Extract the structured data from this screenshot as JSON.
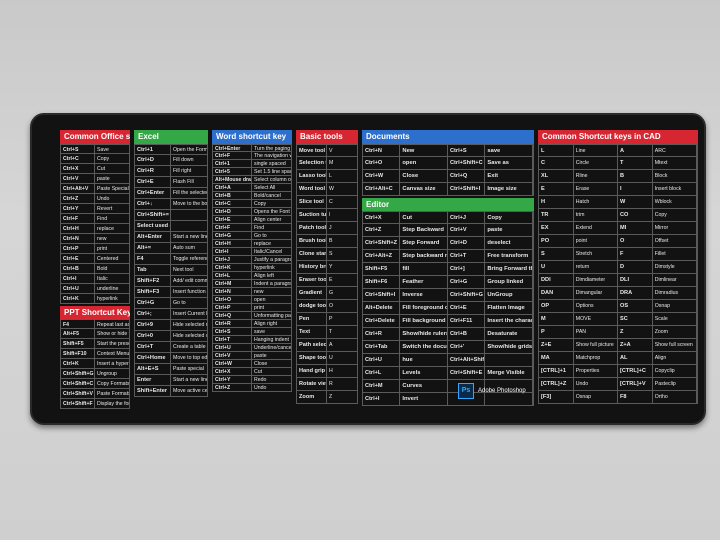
{
  "colors": {
    "red": "#d62631",
    "green": "#34a746",
    "blue": "#2c6fcc",
    "mat": "#121212"
  },
  "panels": [
    {
      "id": "office",
      "title": "Common Office shortcuts",
      "color": "red",
      "left": 28,
      "width": 70,
      "rows": [
        [
          "Ctrl+S",
          "Save"
        ],
        [
          "Ctrl+C",
          "Copy"
        ],
        [
          "Ctrl+X",
          "Cut"
        ],
        [
          "Ctrl+V",
          "paste"
        ],
        [
          "Ctrl+Alt+V",
          "Paste Special"
        ],
        [
          "Ctrl+Z",
          "Undo"
        ],
        [
          "Ctrl+Y",
          "Revert"
        ],
        [
          "Ctrl+F",
          "Find"
        ],
        [
          "Ctrl+H",
          "replace"
        ],
        [
          "Ctrl+N",
          "new"
        ],
        [
          "Ctrl+P",
          "print"
        ],
        [
          "Ctrl+E",
          "Centered"
        ],
        [
          "Ctrl+B",
          "Bold"
        ],
        [
          "Ctrl+I",
          "Italic"
        ],
        [
          "Ctrl+U",
          "underline"
        ],
        [
          "Ctrl+K",
          "hyperlink"
        ]
      ],
      "sub_title": "PPT Shortcut Key",
      "sub_rows": [
        [
          "F4",
          "Repeat last action"
        ],
        [
          "Alt+F5",
          "Show or hide the guides"
        ],
        [
          "Shift+F5",
          "Start the presentation from the current slide"
        ],
        [
          "Shift+F10",
          "Context Menu"
        ],
        [
          "Ctrl+K",
          "Insert a hyperlink"
        ],
        [
          "Ctrl+Shift+G",
          "Ungroup"
        ],
        [
          "Ctrl+Shift+C",
          "Copy Formats"
        ],
        [
          "Ctrl+Shift+V",
          "Paste Formats"
        ],
        [
          "Ctrl+Shift+F",
          "Display the font dialog box"
        ]
      ]
    },
    {
      "id": "excel",
      "title": "Excel",
      "color": "green",
      "left": 102,
      "width": 74,
      "rows": [
        [
          "Ctrl+1",
          "Open the Format Cells dialog box"
        ],
        [
          "Ctrl+D",
          "Fill down"
        ],
        [
          "Ctrl+R",
          "Fill right"
        ],
        [
          "Ctrl+E",
          "Flash Fill"
        ],
        [
          "Ctrl+Enter",
          "Fill the selected cell range"
        ],
        [
          "Ctrl+↓",
          "Move to the bottom cell"
        ],
        [
          "Ctrl+Shift+=",
          ""
        ],
        [
          "Select used cells in a column",
          ""
        ],
        [
          "Alt+Enter",
          "Start a new line within the same cell"
        ],
        [
          "Alt+=",
          "Auto sum"
        ],
        [
          "F4",
          "Toggle references Repeat last action"
        ],
        [
          "Tab",
          "Next tool"
        ],
        [
          "Shift+F2",
          "Add/ edit comments"
        ],
        [
          "Shift+F3",
          "Insert function dialog box"
        ],
        [
          "Ctrl+G",
          "Go to"
        ],
        [
          "Ctrl+;",
          "Insert Current Date"
        ],
        [
          "Ctrl+9",
          "Hide selected rows"
        ],
        [
          "Ctrl+0",
          "Hide selected columns"
        ],
        [
          "Ctrl+T",
          "Create a table"
        ],
        [
          "Ctrl+Home",
          "Move to top edge of data region"
        ],
        [
          "Alt+E+S",
          "Paste special"
        ],
        [
          "Enter",
          "Start a new line"
        ],
        [
          "Shift+Enter",
          "Move active cell up to selection"
        ]
      ]
    },
    {
      "id": "word",
      "title": "Word shortcut key",
      "color": "blue",
      "left": 180,
      "width": 80,
      "rows": [
        [
          "Ctrl+Enter",
          "Turn the paging"
        ],
        [
          "Ctrl+F",
          "The navigation window"
        ],
        [
          "Ctrl+1",
          "single spaced"
        ],
        [
          "Ctrl+5",
          "Set 1.5 line spacing"
        ],
        [
          "Alt+Mouse drag",
          "Select column of text"
        ],
        [
          "Ctrl+A",
          "Select All"
        ],
        [
          "Ctrl+B",
          "Bold/cancel"
        ],
        [
          "Ctrl+C",
          "Copy"
        ],
        [
          "Ctrl+D",
          "Opens the Font window"
        ],
        [
          "Ctrl+E",
          "Align center"
        ],
        [
          "Ctrl+F",
          "Find"
        ],
        [
          "Ctrl+G",
          "Go to"
        ],
        [
          "Ctrl+H",
          "replace"
        ],
        [
          "Ctrl+I",
          "Italic/Cancel"
        ],
        [
          "Ctrl+J",
          "Justify a paragraph"
        ],
        [
          "Ctrl+K",
          "hyperlink"
        ],
        [
          "Ctrl+L",
          "Align left"
        ],
        [
          "Ctrl+M",
          "Indent a paragraph"
        ],
        [
          "Ctrl+N",
          "new"
        ],
        [
          "Ctrl+O",
          "open"
        ],
        [
          "Ctrl+P",
          "print"
        ],
        [
          "Ctrl+Q",
          "Unformatting paragraph"
        ],
        [
          "Ctrl+R",
          "Align right"
        ],
        [
          "Ctrl+S",
          "save"
        ],
        [
          "Ctrl+T",
          "Hanging indent"
        ],
        [
          "Ctrl+U",
          "Underline/cancel"
        ],
        [
          "Ctrl+V",
          "paste"
        ],
        [
          "Ctrl+W",
          "Close"
        ],
        [
          "Ctrl+X",
          "Cut"
        ],
        [
          "Ctrl+Y",
          "Redo"
        ],
        [
          "Ctrl+Z",
          "Undo"
        ]
      ]
    },
    {
      "id": "basic",
      "title": "Basic tools",
      "color": "red",
      "left": 264,
      "width": 62,
      "rows": [
        [
          "Move tool",
          "V"
        ],
        [
          "Selection tool",
          "M"
        ],
        [
          "Lasso tool",
          "L"
        ],
        [
          "Word tool",
          "W"
        ],
        [
          "Slice tool",
          "C"
        ],
        [
          "Suction tube",
          "I"
        ],
        [
          "Patch tool",
          "J"
        ],
        [
          "Brush tool",
          "B"
        ],
        [
          "Clone stamp tool",
          "S"
        ],
        [
          "History brush tool",
          "Y"
        ],
        [
          "Eraser tool",
          "E"
        ],
        [
          "Gradient",
          "G"
        ],
        [
          "dodge tool",
          "O"
        ],
        [
          "Pen",
          "P"
        ],
        [
          "Text",
          "T"
        ],
        [
          "Path selection tool",
          "A"
        ],
        [
          "Shape tool",
          "U"
        ],
        [
          "Hand grip",
          "H"
        ],
        [
          "Rotate view tool",
          "R"
        ],
        [
          "Zoom",
          "Z"
        ]
      ]
    },
    {
      "id": "documents",
      "title": "Documents",
      "color": "blue",
      "left": 330,
      "width": 172,
      "rows": [
        [
          "Ctrl+N",
          "New",
          "Ctrl+S",
          "save"
        ],
        [
          "Ctrl+O",
          "open",
          "Ctrl+Shift+C",
          "Save as"
        ],
        [
          "Ctrl+W",
          "Close",
          "Ctrl+Q",
          "Exit"
        ],
        [
          "Ctrl+Alt+C",
          "Canvas size",
          "Ctrl+Shift+I",
          "Image size"
        ]
      ],
      "sub_title": "Editor",
      "sub_rows": [
        [
          "Ctrl+X",
          "Cut",
          "Ctrl+J",
          "Copy"
        ],
        [
          "Ctrl+Z",
          "Step Backward",
          "Ctrl+V",
          "paste"
        ],
        [
          "Ctrl+Shift+Z",
          "Step Forward",
          "Ctrl+D",
          "deselect"
        ],
        [
          "Ctrl+Alt+Z",
          "Step backward more",
          "Ctrl+T",
          "Free transform"
        ],
        [
          "Shift+F5",
          "fill",
          "Ctrl+]",
          "Bring Forward the layer"
        ],
        [
          "Shift+F6",
          "Feather",
          "Ctrl+G",
          "Group linked"
        ],
        [
          "Ctrl+Shift+I",
          "Inverse",
          "Ctrl+Shift+G",
          "UnGroup"
        ],
        [
          "Alt+Delete",
          "Fill foreground color",
          "Ctrl+E",
          "Flatten Image"
        ],
        [
          "Ctrl+Delete",
          "Fill background color",
          "Ctrl+F11",
          "Insert the character"
        ],
        [
          "Ctrl+R",
          "Show/hide rulers",
          "Ctrl+B",
          "Desaturate"
        ],
        [
          "Ctrl+Tab",
          "Switch the document",
          "Ctrl+'",
          "Show/hide grids slice"
        ],
        [
          "Ctrl+U",
          "hue",
          "Ctrl+Alt+Shift+S",
          ""
        ],
        [
          "Ctrl+L",
          "Levels",
          "Ctrl+Shift+E",
          "Merge Visible"
        ],
        [
          "Ctrl+M",
          "Curves",
          "",
          ""
        ],
        [
          "Ctrl+I",
          "Invert",
          "",
          ""
        ]
      ],
      "ps_badge": "Ps",
      "ps_label": "Adobe Photoshop"
    },
    {
      "id": "cad",
      "title": "Common Shortcut keys in CAD",
      "color": "red",
      "left": 506,
      "width": 160,
      "rows": [
        [
          "L",
          "Line",
          "A",
          "ARC"
        ],
        [
          "C",
          "Circle",
          "T",
          "Mtext"
        ],
        [
          "XL",
          "Rline",
          "B",
          "Block"
        ],
        [
          "E",
          "Erase",
          "I",
          "Insert block"
        ],
        [
          "H",
          "Hatch",
          "W",
          "Wblock"
        ],
        [
          "TR",
          "trim",
          "CO",
          "Copy"
        ],
        [
          "EX",
          "Extend",
          "MI",
          "Mirror"
        ],
        [
          "PO",
          "point",
          "O",
          "Offset"
        ],
        [
          "S",
          "Stretch",
          "F",
          "Fillet"
        ],
        [
          "U",
          "return",
          "D",
          "Dimstyle"
        ],
        [
          "DDI",
          "Dimdiameter",
          "DLI",
          "Dimlinear"
        ],
        [
          "DAN",
          "Dimangular",
          "DRA",
          "Dimradius"
        ],
        [
          "OP",
          "Options",
          "OS",
          "Osnap"
        ],
        [
          "M",
          "MOVE",
          "SC",
          "Scale"
        ],
        [
          "P",
          "PAN",
          "Z",
          "Zoom"
        ],
        [
          "Z+E",
          "Show full picture",
          "Z+A",
          "Show full screen"
        ],
        [
          "MA",
          "Matchprop",
          "AL",
          "Align"
        ],
        [
          "[CTRL]+1",
          "Properties",
          "[CTRL]+C",
          "Copyclip"
        ],
        [
          "[CTRL]+Z",
          "Undo",
          "[CTRL]+V",
          "Pasteclip"
        ],
        [
          "[F3]",
          "Osnap",
          "F8",
          "Ortho"
        ]
      ]
    }
  ]
}
